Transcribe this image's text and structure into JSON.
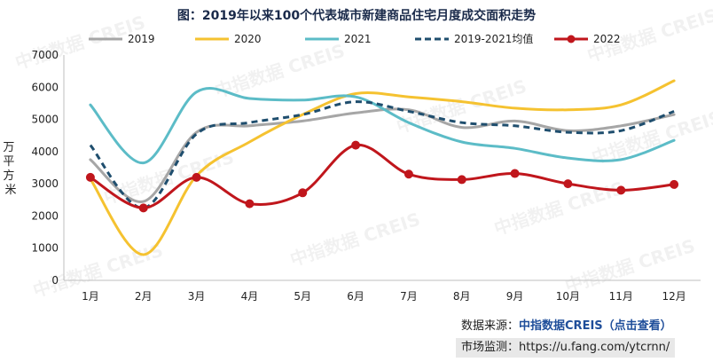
{
  "title": "图：2019年以来100个代表城市新建商品住宅月度成交面积走势",
  "source": {
    "label": "数据来源：",
    "brand": "中指数据CREIS",
    "link_text": "（点击查看）"
  },
  "monitor": {
    "label": "市场监测：",
    "url": "https://u.fang.com/ytcrnn/"
  },
  "watermark": "中指数据 CREIS",
  "chart_data": {
    "type": "line",
    "title": "图：2019年以来100个代表城市新建商品住宅月度成交面积走势",
    "ylabel": "万平方米",
    "xlabel": "",
    "ylim": [
      0,
      7000
    ],
    "yticks": [
      0,
      1000,
      2000,
      3000,
      4000,
      5000,
      6000,
      7000
    ],
    "grid": false,
    "legend_position": "top",
    "categories": [
      "1月",
      "2月",
      "3月",
      "4月",
      "5月",
      "6月",
      "7月",
      "8月",
      "9月",
      "10月",
      "11月",
      "12月"
    ],
    "series": [
      {
        "name": "2019",
        "color": "#a6a6a6",
        "style": "solid",
        "markers": false,
        "values": [
          3750,
          2450,
          4600,
          4800,
          4950,
          5200,
          5300,
          4750,
          4950,
          4650,
          4800,
          5150
        ]
      },
      {
        "name": "2020",
        "color": "#f5c230",
        "style": "solid",
        "markers": false,
        "values": [
          3150,
          800,
          3250,
          4300,
          5150,
          5800,
          5700,
          5550,
          5350,
          5300,
          5450,
          6200
        ]
      },
      {
        "name": "2021",
        "color": "#5cbcc7",
        "style": "solid",
        "markers": false,
        "values": [
          5450,
          3650,
          5850,
          5650,
          5600,
          5700,
          4900,
          4300,
          4100,
          3800,
          3750,
          4350
        ]
      },
      {
        "name": "2019-2021均值",
        "color": "#1f4e6e",
        "style": "dashed",
        "markers": false,
        "values": [
          4200,
          2250,
          4550,
          4900,
          5150,
          5550,
          5250,
          4900,
          4800,
          4600,
          4650,
          5250
        ]
      },
      {
        "name": "2022",
        "color": "#c0161c",
        "style": "solid",
        "markers": true,
        "values": [
          3200,
          2250,
          3200,
          2380,
          2720,
          4200,
          3300,
          3130,
          3320,
          3000,
          2800,
          2980
        ]
      }
    ]
  }
}
